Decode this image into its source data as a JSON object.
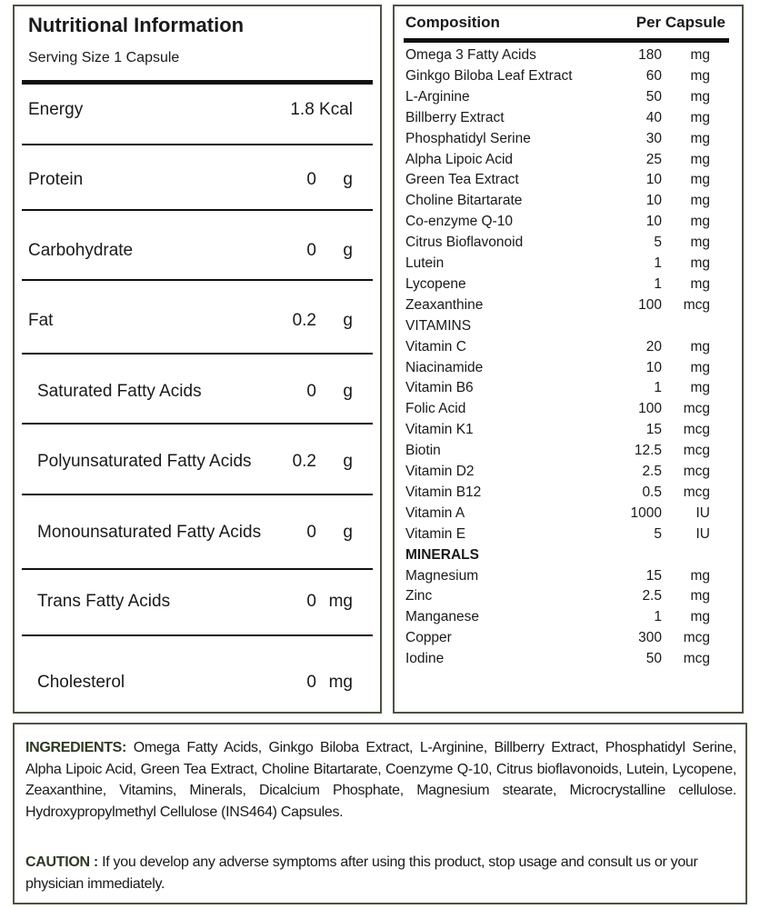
{
  "nutrition": {
    "title": "Nutritional Information",
    "serving": "Serving Size 1 Capsule",
    "rows": [
      {
        "name": "Energy",
        "value": "1.8 Kcal",
        "unit": ""
      },
      {
        "name": "Protein",
        "value": "0",
        "unit": "g"
      },
      {
        "name": "Carbohydrate",
        "value": "0",
        "unit": "g"
      },
      {
        "name": "Fat",
        "value": "0.2",
        "unit": "g"
      },
      {
        "name": "Saturated Fatty Acids",
        "value": "0",
        "unit": "g",
        "sub": true
      },
      {
        "name": "Polyunsaturated Fatty Acids",
        "value": "0.2",
        "unit": "g",
        "sub": true
      },
      {
        "name": "Monounsaturated Fatty Acids",
        "value": "0",
        "unit": "g",
        "sub": true
      },
      {
        "name": "Trans Fatty Acids",
        "value": "0",
        "unit": "mg",
        "sub": true
      },
      {
        "name": "Cholesterol",
        "value": "0",
        "unit": "mg",
        "sub": true
      }
    ]
  },
  "composition": {
    "header_name": "Composition",
    "header_value": "Per Capsule",
    "rows": [
      {
        "name": "Omega 3 Fatty Acids",
        "value": "180",
        "unit": "mg"
      },
      {
        "name": "Ginkgo Biloba Leaf Extract",
        "value": "60",
        "unit": "mg"
      },
      {
        "name": "L-Arginine",
        "value": "50",
        "unit": "mg"
      },
      {
        "name": "Billberry Extract",
        "value": "40",
        "unit": "mg"
      },
      {
        "name": "Phosphatidyl Serine",
        "value": "30",
        "unit": "mg"
      },
      {
        "name": "Alpha Lipoic Acid",
        "value": "25",
        "unit": "mg"
      },
      {
        "name": "Green Tea Extract",
        "value": "10",
        "unit": "mg"
      },
      {
        "name": "Choline Bitartarate",
        "value": "10",
        "unit": "mg"
      },
      {
        "name": "Co-enzyme Q-10",
        "value": "10",
        "unit": "mg"
      },
      {
        "name": "Citrus Bioflavonoid",
        "value": "5",
        "unit": "mg"
      },
      {
        "name": "Lutein",
        "value": "1",
        "unit": "mg"
      },
      {
        "name": "Lycopene",
        "value": "1",
        "unit": "mg"
      },
      {
        "name": "Zeaxanthine",
        "value": "100",
        "unit": "mcg"
      },
      {
        "name": "VITAMINS",
        "value": "",
        "unit": ""
      },
      {
        "name": "Vitamin C",
        "value": "20",
        "unit": "mg"
      },
      {
        "name": "Niacinamide",
        "value": "10",
        "unit": "mg"
      },
      {
        "name": "Vitamin B6",
        "value": "1",
        "unit": "mg"
      },
      {
        "name": "Folic Acid",
        "value": "100",
        "unit": "mcg"
      },
      {
        "name": "Vitamin K1",
        "value": "15",
        "unit": "mcg"
      },
      {
        "name": "Biotin",
        "value": "12.5",
        "unit": "mcg"
      },
      {
        "name": "Vitamin D2",
        "value": "2.5",
        "unit": "mcg"
      },
      {
        "name": "Vitamin B12",
        "value": "0.5",
        "unit": "mcg"
      },
      {
        "name": "Vitamin A",
        "value": "1000",
        "unit": "IU"
      },
      {
        "name": "Vitamin E",
        "value": "5",
        "unit": "IU"
      },
      {
        "name": "MINERALS",
        "value": "",
        "unit": "",
        "bold": true
      },
      {
        "name": "Magnesium",
        "value": "15",
        "unit": "mg"
      },
      {
        "name": "Zinc",
        "value": "2.5",
        "unit": "mg"
      },
      {
        "name": "Manganese",
        "value": "1",
        "unit": "mg"
      },
      {
        "name": "Copper",
        "value": "300",
        "unit": "mcg"
      },
      {
        "name": "Iodine",
        "value": "50",
        "unit": "mcg"
      }
    ]
  },
  "ingredients": {
    "label": "INGREDIENTS:",
    "text": " Omega Fatty Acids, Ginkgo Biloba Extract, L-Arginine, Billberry Extract, Phosphatidyl Serine, Alpha Lipoic Acid, Green Tea Extract, Choline  Bitartarate, Coenzyme Q-10, Citrus bioflavonoids, Lutein, Lycopene, Zeaxanthine, Vitamins, Minerals, Dicalcium Phosphate, Magnesium stearate, Microcrystalline cellulose. Hydroxypropylmethyl Cellulose (INS464) Capsules."
  },
  "caution": {
    "label": "CAUTION :",
    "text": " If you develop any adverse symptoms after using this product, stop usage and consult us or your physician immediately."
  },
  "colors": {
    "border": "#4a5440",
    "label": "#2d3a22"
  }
}
